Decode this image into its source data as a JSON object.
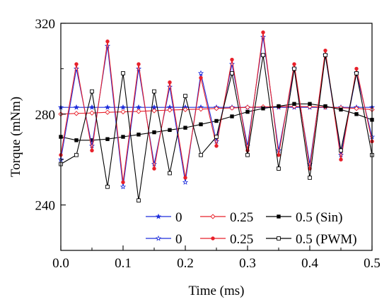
{
  "chart_data": {
    "type": "line",
    "title": "",
    "xlabel": "Time (ms)",
    "ylabel": "Torque (mNm)",
    "xlim": [
      0.0,
      0.5
    ],
    "ylim": [
      220,
      320
    ],
    "x_ticks": [
      "0.0",
      "0.1",
      "0.2",
      "0.3",
      "0.4",
      "0.5"
    ],
    "y_ticks": [
      "240",
      "280",
      "320"
    ],
    "grid": false,
    "legend_position": "bottom-right",
    "legend_columns": 3,
    "x": [
      0.0,
      0.025,
      0.05,
      0.075,
      0.1,
      0.125,
      0.15,
      0.175,
      0.2,
      0.225,
      0.25,
      0.275,
      0.3,
      0.325,
      0.35,
      0.375,
      0.4,
      0.425,
      0.45,
      0.475,
      0.5
    ],
    "series": [
      {
        "name": "0",
        "color": "#1f2fdc",
        "marker": "star",
        "values": [
          283,
          283,
          283,
          283,
          283,
          283,
          283,
          283,
          283,
          283,
          283,
          283,
          283,
          283,
          283,
          283,
          283,
          283,
          283,
          283,
          283
        ]
      },
      {
        "name": "0.25",
        "color": "#e8202a",
        "marker": "open-diamond",
        "values": [
          280,
          280.3,
          280.5,
          280.8,
          281,
          281.2,
          281.5,
          281.8,
          282,
          282.2,
          282.5,
          282.7,
          283,
          283.2,
          283.3,
          283.4,
          283.3,
          283.1,
          282.8,
          282.5,
          282
        ]
      },
      {
        "name": "0.5 (Sin)",
        "color": "#000000",
        "marker": "filled-square",
        "values": [
          270,
          268.5,
          268.5,
          269,
          270,
          271,
          272,
          273,
          274,
          275.5,
          277,
          279,
          281,
          282.5,
          283.5,
          284.5,
          284.5,
          283.5,
          282,
          280,
          277.5
        ]
      },
      {
        "name": "0",
        "color": "#1f2fdc",
        "marker": "open-star",
        "values": [
          260,
          300,
          266,
          310,
          248,
          300,
          258,
          292,
          250,
          298,
          268,
          302,
          266,
          314,
          264,
          300,
          258,
          306,
          262,
          298,
          270
        ]
      },
      {
        "name": "0.25",
        "color": "#e8202a",
        "marker": "filled-circle",
        "values": [
          262,
          302,
          264,
          312,
          250,
          302,
          256,
          294,
          252,
          296,
          266,
          304,
          264,
          316,
          262,
          302,
          256,
          308,
          260,
          300,
          268
        ]
      },
      {
        "name": "0.5 (PWM)",
        "color": "#000000",
        "marker": "open-square",
        "values": [
          258,
          262,
          290,
          248,
          298,
          242,
          290,
          254,
          288,
          262,
          270,
          298,
          262,
          306,
          256,
          300,
          252,
          306,
          264,
          298,
          262
        ]
      }
    ]
  }
}
